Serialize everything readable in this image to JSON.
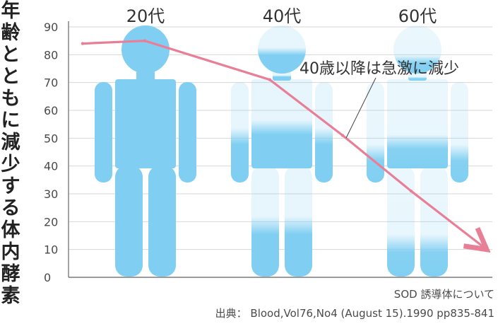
{
  "chart_data": {
    "type": "line",
    "title": "年齢とともに減少する体内酵素",
    "categories": [
      "20代",
      "40代",
      "60代"
    ],
    "x": [
      "",
      "20代",
      "40代",
      "",
      "60代",
      ""
    ],
    "series": [
      {
        "values": [
          84,
          85,
          71,
          51,
          31,
          10
        ]
      }
    ],
    "annotation": "40歳以降は急激に減少",
    "ylim": [
      0,
      90
    ],
    "y_ticks": [
      0,
      10,
      20,
      30,
      40,
      50,
      60,
      70,
      80,
      90
    ],
    "grid": true,
    "legend": "none",
    "source": {
      "line1": "SOD 誘導体について",
      "line2": "出典： Blood,Vol76,No4 (August 15).1990 pp835-841"
    },
    "figure_opacity": [
      1,
      0.45,
      0.25
    ]
  },
  "colors": {
    "figure_blue": "#80cff2",
    "line_pink": "#e87f97",
    "grid": "#d7d7d7",
    "axis": "#666666"
  }
}
